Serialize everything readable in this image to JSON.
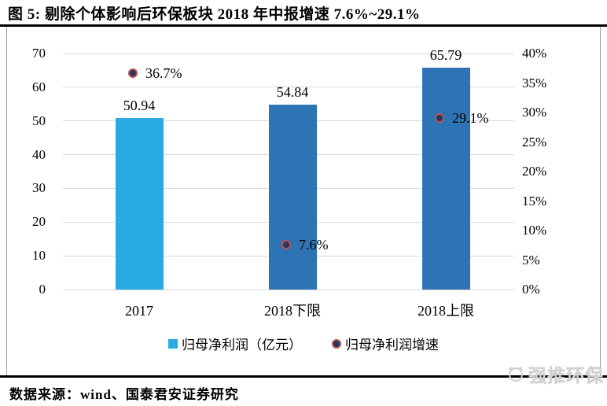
{
  "figure": {
    "title": "图 5: 剔除个体影响后环保板块 2018 年中报增速 7.6%~29.1%",
    "source": "数据来源：wind、国泰君安证券研究",
    "watermark": "强推环保"
  },
  "chart_data": {
    "type": "bar+scatter",
    "categories": [
      "2017",
      "2018下限",
      "2018上限"
    ],
    "series": [
      {
        "name": "归母净利润（亿元）",
        "chart_type": "bar",
        "axis": "left",
        "values": [
          50.94,
          54.84,
          65.79
        ],
        "data_labels": [
          "50.94",
          "54.84",
          "65.79"
        ],
        "bar_colors": [
          "#29ABE2",
          "#2E74B5",
          "#2E74B5"
        ]
      },
      {
        "name": "归母净利润增速",
        "chart_type": "scatter",
        "axis": "right",
        "values": [
          36.7,
          7.6,
          29.1
        ],
        "data_labels": [
          "36.7%",
          "7.6%",
          "29.1%"
        ],
        "marker": {
          "fill": "#1F3864",
          "ring": "#C0504D"
        }
      }
    ],
    "left_axis": {
      "min": 0,
      "max": 70,
      "tick_step": 10,
      "tick_labels": [
        "0",
        "10",
        "20",
        "30",
        "40",
        "50",
        "60",
        "70"
      ]
    },
    "right_axis": {
      "min": 0,
      "max": 40,
      "tick_step": 5,
      "tick_labels": [
        "0%",
        "5%",
        "10%",
        "15%",
        "20%",
        "25%",
        "30%",
        "35%",
        "40%"
      ]
    },
    "grid": true,
    "gridline_color": "#D9D9D9",
    "legend_position": "bottom"
  }
}
